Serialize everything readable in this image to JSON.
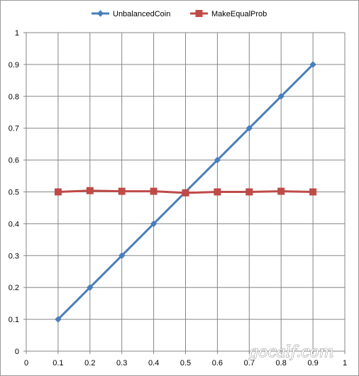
{
  "chart_data": {
    "type": "line",
    "title": "",
    "xlabel": "",
    "ylabel": "",
    "xlim": [
      0,
      1
    ],
    "ylim": [
      0,
      1
    ],
    "x_ticks": [
      "0",
      "0.1",
      "0.2",
      "0.3",
      "0.4",
      "0.5",
      "0.6",
      "0.7",
      "0.8",
      "0.9",
      "1"
    ],
    "y_ticks": [
      "0",
      "0.1",
      "0.2",
      "0.3",
      "0.4",
      "0.5",
      "0.6",
      "0.7",
      "0.8",
      "0.9",
      "1"
    ],
    "grid": true,
    "legend_position": "top",
    "x": [
      0.1,
      0.2,
      0.3,
      0.4,
      0.5,
      0.6,
      0.7,
      0.8,
      0.9
    ],
    "series": [
      {
        "name": "UnbalancedCoin",
        "color": "#4a7ebb",
        "marker": "diamond",
        "values": [
          0.1,
          0.2,
          0.3,
          0.4,
          0.5,
          0.6,
          0.7,
          0.8,
          0.9
        ]
      },
      {
        "name": "MakeEqualProb",
        "color": "#be4b48",
        "marker": "square",
        "values": [
          0.5,
          0.504,
          0.502,
          0.502,
          0.497,
          0.5,
          0.5,
          0.502,
          0.5
        ]
      }
    ]
  },
  "watermark": "gocalf.com"
}
